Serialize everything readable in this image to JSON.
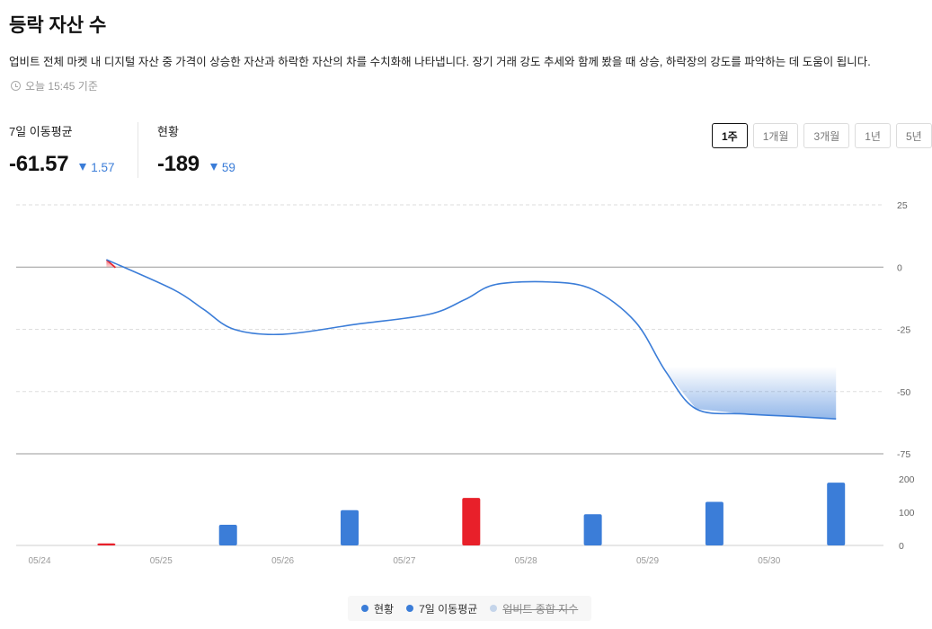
{
  "header": {
    "title": "등락 자산 수",
    "description": "업비트 전체 마켓 내 디지털 자산 중 가격이 상승한 자산과 하락한 자산의 차를 수치화해 나타냅니다. 장기 거래 강도 추세와 함께 봤을 때 상승, 하락장의 강도를 파악하는 데 도움이 됩니다.",
    "timestamp": "오늘 15:45 기준"
  },
  "stats": {
    "ma7": {
      "label": "7일 이동평균",
      "value": "-61.57",
      "change": "1.57"
    },
    "current": {
      "label": "현황",
      "value": "-189",
      "change": "59"
    }
  },
  "periods": [
    "1주",
    "1개월",
    "3개월",
    "1년",
    "5년"
  ],
  "active_period": "1주",
  "legend": [
    {
      "label": "현황",
      "color": "#3b7dd8",
      "off": false
    },
    {
      "label": "7일 이동평균",
      "color": "#3b7dd8",
      "off": false
    },
    {
      "label": "업비트 종합 지수",
      "color": "#c5d5ea",
      "off": true
    }
  ],
  "colors": {
    "up": "#e8202a",
    "down": "#3b7dd8",
    "line": "#3b7dd8"
  },
  "chart_data": {
    "type": "line",
    "x_ticks": [
      "05/24",
      "05/25",
      "05/26",
      "05/27",
      "05/28",
      "05/29",
      "05/30"
    ],
    "line": {
      "name": "7일 이동평균",
      "x": [
        0.55,
        1.1,
        1.35,
        1.6,
        2.0,
        2.6,
        3.2,
        3.5,
        3.75,
        4.2,
        4.55,
        4.9,
        5.15,
        5.4,
        5.8,
        6.2,
        6.55
      ],
      "y": [
        3,
        -9,
        -17,
        -25,
        -27,
        -23,
        -19,
        -13,
        -7,
        -6,
        -9,
        -22,
        -42,
        -57,
        -59,
        -60,
        -61
      ]
    },
    "line_y_ticks": [
      25,
      0,
      -25,
      -50,
      -75
    ],
    "line_ylim": [
      -75,
      25
    ],
    "bars": {
      "x": [
        0.55,
        1.55,
        2.55,
        3.55,
        4.55,
        5.55,
        6.55
      ],
      "values": [
        6,
        62,
        106,
        143,
        94,
        131,
        189
      ],
      "direction": [
        "up",
        "down",
        "down",
        "up",
        "down",
        "down",
        "down"
      ]
    },
    "bar_y_ticks": [
      200,
      100,
      0
    ],
    "bar_ylim": [
      0,
      200
    ],
    "grid": true
  }
}
